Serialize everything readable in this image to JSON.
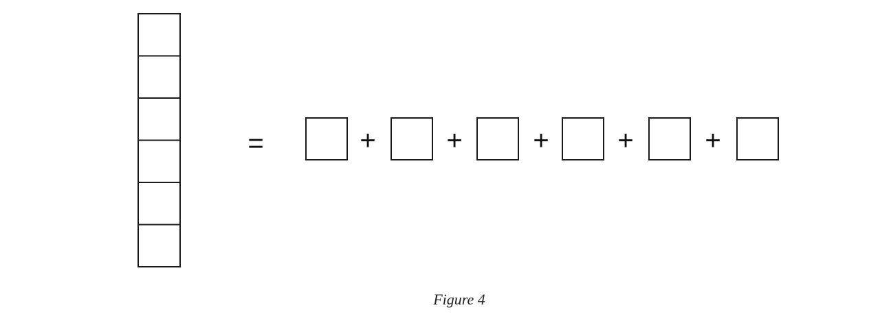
{
  "figure": {
    "caption": "Figure 4",
    "column_square_count": 6,
    "row_square_count": 6,
    "equals_symbol": "=",
    "plus_symbol": "+"
  }
}
